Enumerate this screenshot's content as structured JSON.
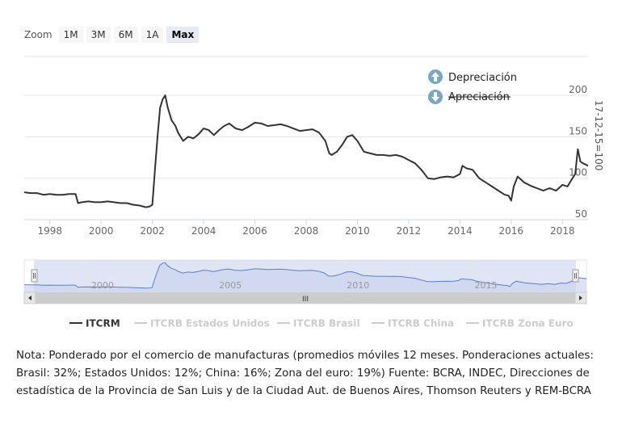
{
  "zoom": {
    "label": "Zoom",
    "buttons": [
      {
        "label": "1M",
        "active": false
      },
      {
        "label": "3M",
        "active": false
      },
      {
        "label": "6M",
        "active": false
      },
      {
        "label": "1A",
        "active": false
      },
      {
        "label": "Max",
        "active": true
      }
    ]
  },
  "annotations": {
    "up": "Depreciación",
    "down": "Apreciación"
  },
  "navigator": {
    "labels": [
      {
        "year": 2000,
        "label": "2000"
      },
      {
        "year": 2005,
        "label": "2005"
      },
      {
        "year": 2010,
        "label": "2010"
      },
      {
        "year": 2015,
        "label": "2015"
      }
    ],
    "scroll_grip": "III"
  },
  "legend": [
    {
      "name": "ITCRM",
      "active": true
    },
    {
      "name": "ITCRB Estados Unidos",
      "active": false
    },
    {
      "name": "ITCRB Brasil",
      "active": false
    },
    {
      "name": "ITCRB China",
      "active": false
    },
    {
      "name": "ITCRB Zona Euro",
      "active": false
    }
  ],
  "note": "Nota: Ponderado por el comercio de manufacturas (promedios móviles 12 meses. Ponderaciones actuales: Brasil: 32%; Estados Unidos: 12%; China: 16%; Zona del euro: 19%) Fuente: BCRA, INDEC, Direcciones de estadística de la Provincia de San Luis y de la Ciudad Aut. de Buenos Aires, Thomson Reuters y REM-BCRA",
  "colors": {
    "line": "#333333",
    "navigator_fill": "#c7d0ee",
    "navigator_line": "#5a7fc8",
    "arrow": "#7aa6c2"
  },
  "chart_data": {
    "type": "line",
    "ylabel": "17-12-15=100",
    "ylim": [
      50,
      200
    ],
    "yticks": [
      50,
      100,
      150,
      200
    ],
    "ytick_labels": [
      "50",
      "100",
      "150",
      "200"
    ],
    "xlim": [
      1997.0,
      2019.0
    ],
    "xticks": [
      1998,
      2000,
      2002,
      2004,
      2006,
      2008,
      2010,
      2012,
      2014,
      2016,
      2018
    ],
    "xtick_labels": [
      "1998",
      "2000",
      "2002",
      "2004",
      "2006",
      "2008",
      "2010",
      "2012",
      "2014",
      "2016",
      "2018"
    ],
    "series": [
      {
        "name": "ITCRM",
        "x": [
          1997.0,
          1997.25,
          1997.5,
          1997.75,
          1998.0,
          1998.25,
          1998.5,
          1998.75,
          1999.0,
          1999.1,
          1999.25,
          1999.5,
          1999.75,
          2000.0,
          2000.25,
          2000.5,
          2000.75,
          2001.0,
          2001.25,
          2001.5,
          2001.75,
          2001.9,
          2002.0,
          2002.1,
          2002.2,
          2002.3,
          2002.4,
          2002.5,
          2002.6,
          2002.75,
          2002.9,
          2003.0,
          2003.2,
          2003.4,
          2003.6,
          2003.8,
          2004.0,
          2004.2,
          2004.4,
          2004.6,
          2004.8,
          2005.0,
          2005.25,
          2005.5,
          2005.75,
          2006.0,
          2006.25,
          2006.5,
          2006.75,
          2007.0,
          2007.25,
          2007.5,
          2007.75,
          2008.0,
          2008.25,
          2008.5,
          2008.75,
          2008.9,
          2009.0,
          2009.2,
          2009.4,
          2009.6,
          2009.8,
          2010.0,
          2010.25,
          2010.5,
          2010.75,
          2011.0,
          2011.25,
          2011.5,
          2011.75,
          2012.0,
          2012.25,
          2012.5,
          2012.75,
          2013.0,
          2013.25,
          2013.5,
          2013.75,
          2014.0,
          2014.1,
          2014.25,
          2014.5,
          2014.75,
          2015.0,
          2015.25,
          2015.5,
          2015.75,
          2015.9,
          2016.0,
          2016.1,
          2016.25,
          2016.5,
          2016.75,
          2017.0,
          2017.25,
          2017.5,
          2017.75,
          2018.0,
          2018.2,
          2018.35,
          2018.5,
          2018.6,
          2018.7,
          2018.8,
          2019.0
        ],
        "values": [
          83,
          82,
          82,
          80,
          81,
          80,
          80,
          81,
          81,
          70,
          71,
          72,
          71,
          71,
          72,
          71,
          70,
          70,
          68,
          67,
          65,
          66,
          68,
          110,
          150,
          185,
          195,
          200,
          185,
          170,
          163,
          155,
          145,
          150,
          148,
          153,
          160,
          158,
          152,
          158,
          163,
          166,
          160,
          158,
          162,
          167,
          166,
          163,
          164,
          165,
          163,
          160,
          157,
          158,
          159,
          155,
          145,
          130,
          128,
          132,
          140,
          150,
          152,
          145,
          132,
          130,
          128,
          128,
          127,
          128,
          126,
          122,
          118,
          110,
          100,
          99,
          101,
          102,
          101,
          105,
          115,
          112,
          110,
          100,
          95,
          90,
          85,
          80,
          79,
          73,
          90,
          102,
          95,
          91,
          88,
          85,
          88,
          85,
          92,
          90,
          98,
          105,
          135,
          120,
          118,
          115
        ]
      }
    ]
  }
}
